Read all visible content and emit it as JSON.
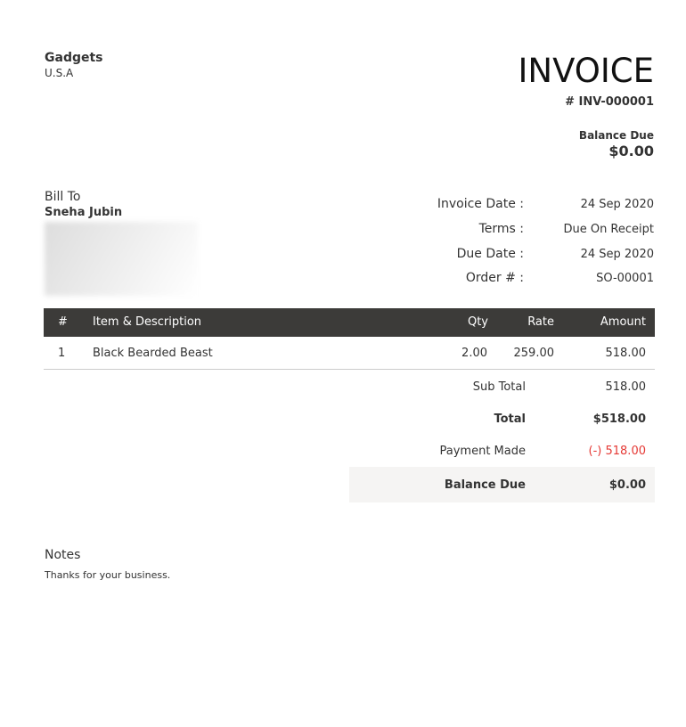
{
  "company": {
    "name": "Gadgets",
    "country": "U.S.A"
  },
  "invoice": {
    "title": "INVOICE",
    "number": "# INV-000001",
    "balance_label": "Balance Due",
    "balance": "$0.00"
  },
  "bill_to": {
    "label": "Bill To",
    "name": "Sneha Jubin"
  },
  "meta": [
    {
      "label": "Invoice Date :",
      "value": "24 Sep 2020"
    },
    {
      "label": "Terms :",
      "value": "Due On Receipt"
    },
    {
      "label": "Due Date :",
      "value": "24 Sep 2020"
    },
    {
      "label": "Order # :",
      "value": "SO-00001"
    }
  ],
  "table": {
    "headers": [
      "#",
      "Item & Description",
      "Qty",
      "Rate",
      "Amount"
    ],
    "rows": [
      {
        "num": "1",
        "item": "Black Bearded Beast",
        "qty": "2.00",
        "rate": "259.00",
        "amount": "518.00"
      }
    ]
  },
  "totals": {
    "sub_total_label": "Sub Total",
    "sub_total": "518.00",
    "total_label": "Total",
    "total": "$518.00",
    "payment_label": "Payment Made",
    "payment": "(-) 518.00",
    "balance_label": "Balance Due",
    "balance": "$0.00"
  },
  "notes": {
    "label": "Notes",
    "text": "Thanks for your business."
  },
  "colors": {
    "header_bg": "#3c3b39",
    "payment": "#e53935",
    "balance_bg": "#f5f4f3"
  }
}
